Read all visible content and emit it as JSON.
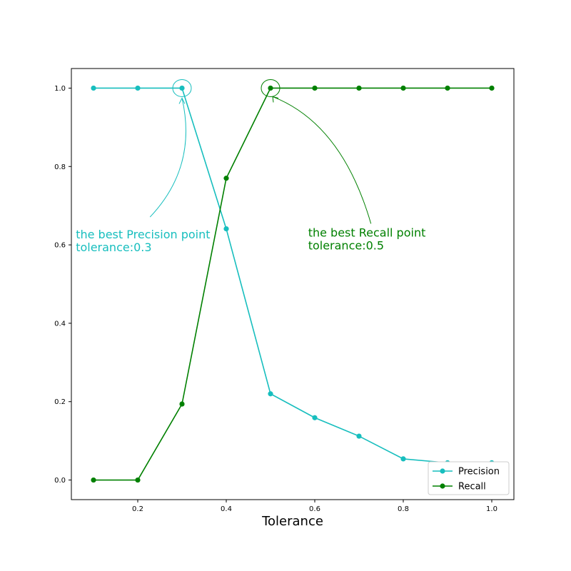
{
  "chart_data": {
    "type": "line",
    "xlabel": "Tolerance",
    "ylabel": "",
    "title": "",
    "xlim": [
      0.05,
      1.05
    ],
    "ylim": [
      -0.05,
      1.05
    ],
    "x_ticks": [
      0.2,
      0.4,
      0.6,
      0.8,
      1.0
    ],
    "x_tick_labels": [
      "0.2",
      "0.4",
      "0.6",
      "0.8",
      "1.0"
    ],
    "y_ticks": [
      0.0,
      0.2,
      0.4,
      0.6,
      0.8,
      1.0
    ],
    "y_tick_labels": [
      "0.0",
      "0.2",
      "0.4",
      "0.6",
      "0.8",
      "1.0"
    ],
    "grid": false,
    "legend_position": "bottom-right",
    "series": [
      {
        "name": "Precision",
        "color": "#17bebe",
        "x": [
          0.1,
          0.2,
          0.3,
          0.4,
          0.5,
          0.6,
          0.7,
          0.8,
          0.9,
          1.0
        ],
        "y": [
          1.0,
          1.0,
          1.0,
          0.641,
          0.22,
          0.159,
          0.112,
          0.054,
          0.044,
          0.044
        ]
      },
      {
        "name": "Recall",
        "color": "#008000",
        "x": [
          0.1,
          0.2,
          0.3,
          0.4,
          0.5,
          0.6,
          0.7,
          0.8,
          0.9,
          1.0
        ],
        "y": [
          0.0,
          0.0,
          0.194,
          0.77,
          1.0,
          1.0,
          1.0,
          1.0,
          1.0,
          1.0
        ]
      }
    ],
    "annotations": [
      {
        "lines": [
          "the best Precision point",
          "tolerance:0.3"
        ],
        "color": "#17bebe",
        "point": [
          0.3,
          1.0
        ],
        "text_pos": [
          0.06,
          0.58
        ]
      },
      {
        "lines": [
          "the best Recall point",
          "tolerance:0.5"
        ],
        "color": "#008000",
        "point": [
          0.5,
          1.0
        ],
        "text_pos": [
          0.585,
          0.585
        ]
      }
    ]
  }
}
